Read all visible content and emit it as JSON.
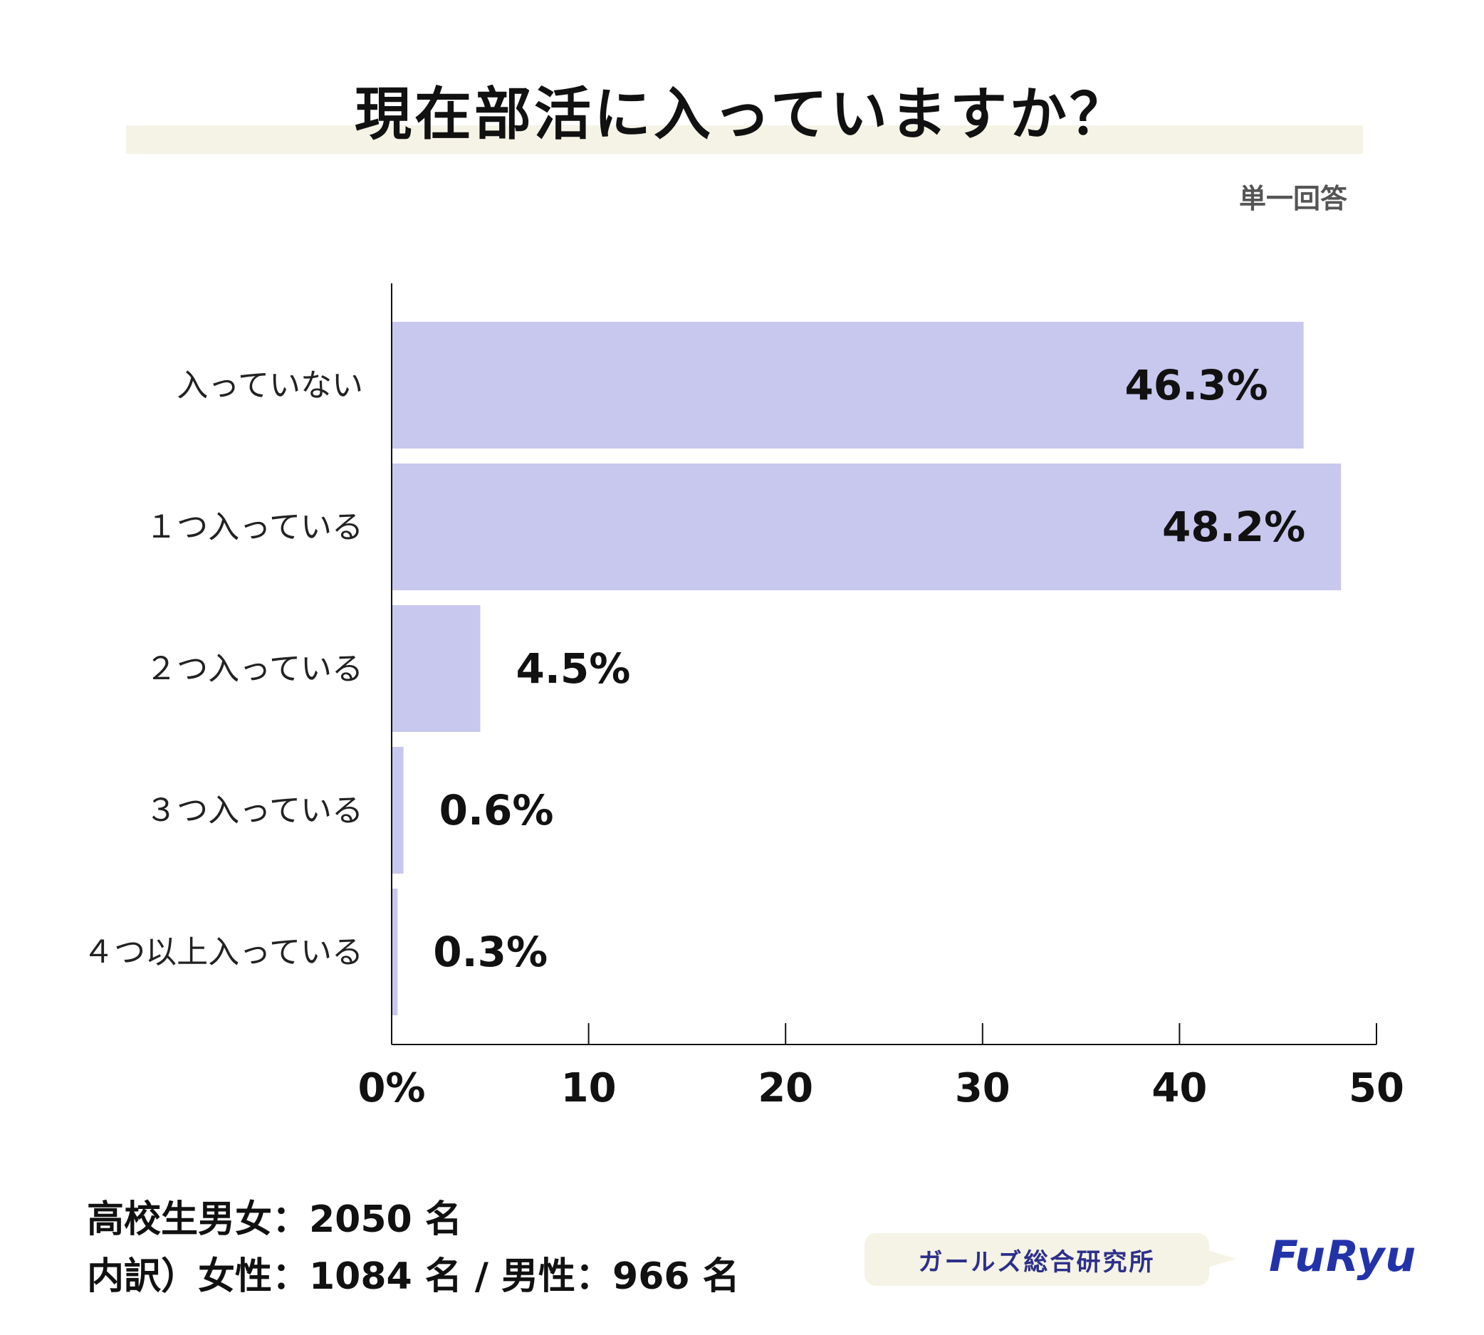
{
  "title": "現在部活に入っていますか？",
  "answer_type": "単一回答",
  "chart_data": {
    "type": "bar",
    "orientation": "horizontal",
    "title": "現在部活に入っていますか？",
    "categories": [
      "入っていない",
      "１つ入っている",
      "２つ入っている",
      "３つ入っている",
      "４つ以上入っている"
    ],
    "values": [
      46.3,
      48.2,
      4.5,
      0.6,
      0.3
    ],
    "value_labels": [
      "46.3%",
      "48.2%",
      "4.5%",
      "0.6%",
      "0.3%"
    ],
    "xlim": [
      0,
      50
    ],
    "ticks": [
      0,
      10,
      20,
      30,
      40,
      50
    ],
    "tick_labels": [
      "0%",
      "10",
      "20",
      "30",
      "40",
      "50"
    ],
    "xlabel": "",
    "ylabel": "",
    "grid": false,
    "bar_color": "#c8c7ee"
  },
  "sample": {
    "total": "高校生男女：2050 名",
    "breakdown": "内訳）女性：1084 名 / 男性：966 名"
  },
  "footer": {
    "badge": "ガールズ総合研究所",
    "logo": "FuRyu"
  },
  "colors": {
    "bar": "#c8c7ee",
    "title_band": "#f4f3e5",
    "badge_text": "#2d2f8a",
    "logo": "#2233aa"
  }
}
